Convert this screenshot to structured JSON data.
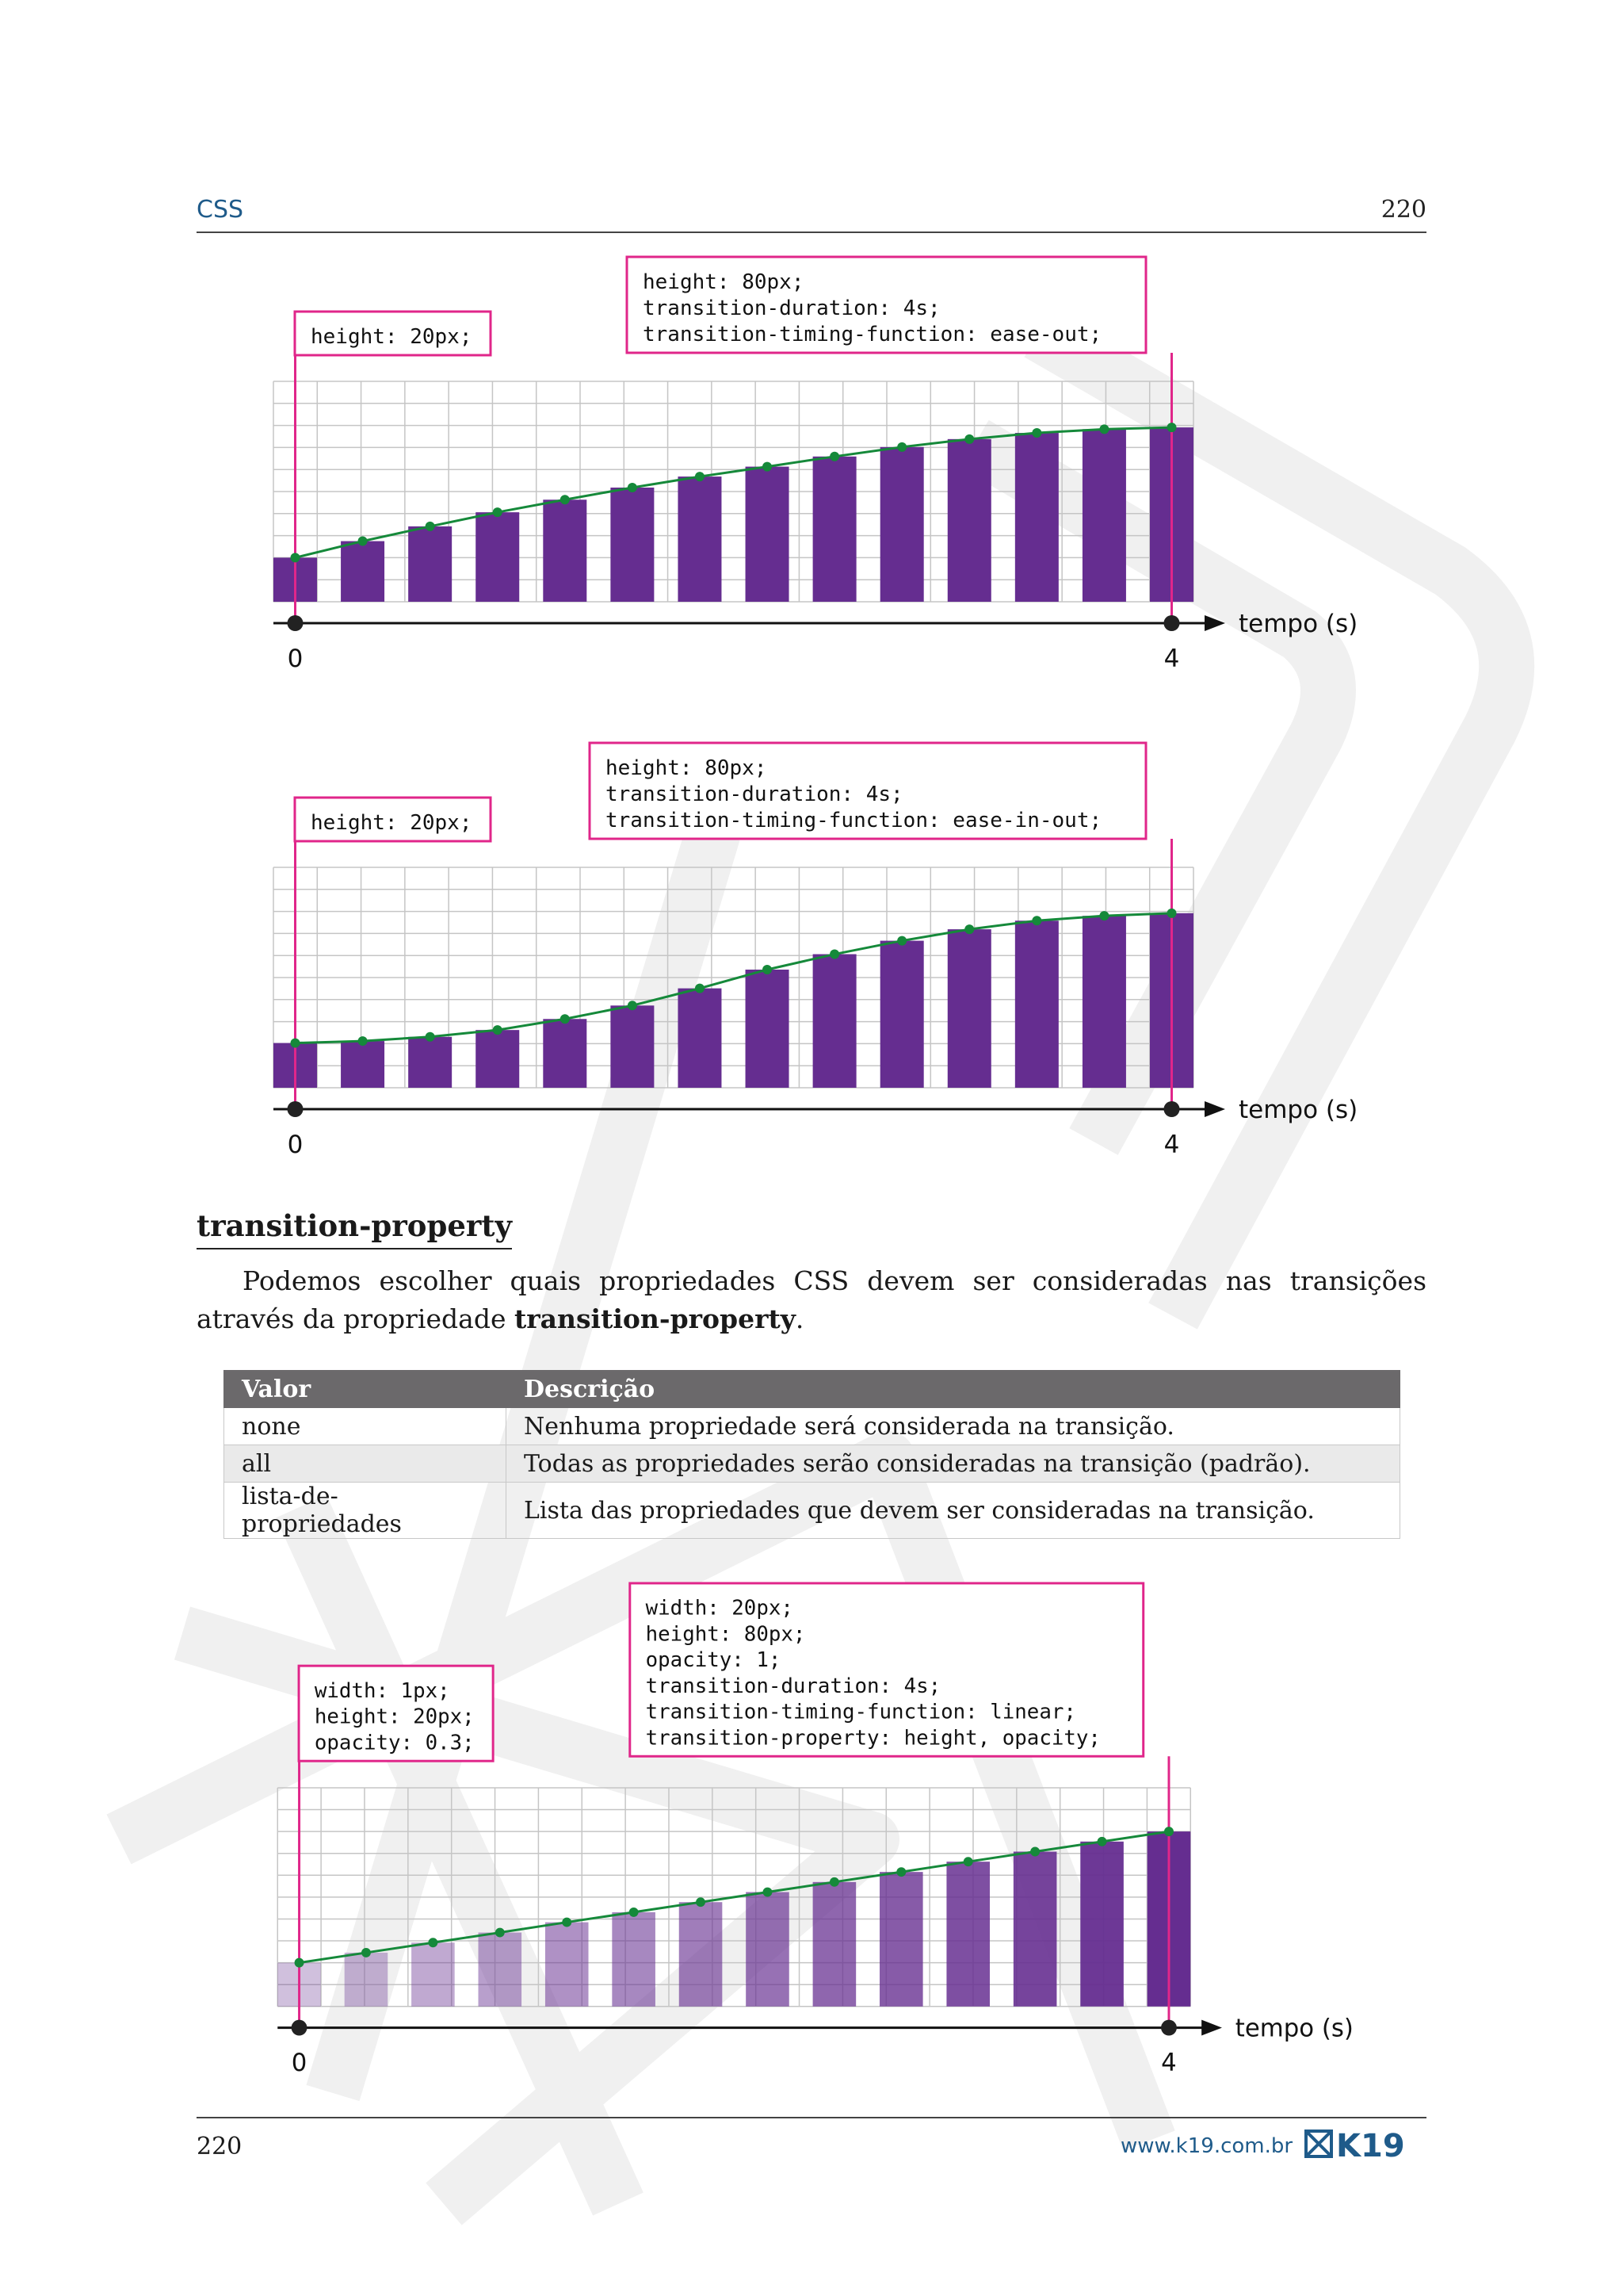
{
  "header": {
    "title": "CSS",
    "page_number": "220"
  },
  "section": {
    "heading": "transition-property",
    "paragraph_before": "Podemos escolher quais propriedades CSS devem ser consideradas nas transições através da propriedade ",
    "paragraph_bold": "transition-property",
    "paragraph_after": "."
  },
  "table": {
    "headers": [
      "Valor",
      "Descrição"
    ],
    "rows": [
      [
        "none",
        "Nenhuma propriedade será considerada na transição."
      ],
      [
        "all",
        "Todas as propriedades serão consideradas na transição (padrão)."
      ],
      [
        "lista-de-propriedades",
        "Lista das propriedades que devem ser consideradas na transição."
      ]
    ]
  },
  "footer": {
    "page_number": "220",
    "website": "www.k19.com.br",
    "logo_text": "K19"
  },
  "colors": {
    "bar": "#652d90",
    "curve": "#15893a",
    "callout_border": "#e0268a",
    "header_blue": "#1f5b8a",
    "table_header": "#6b696b"
  },
  "chart_data": [
    {
      "type": "bar",
      "title": "ease-out",
      "start_label": [
        "height: 20px;"
      ],
      "end_label": [
        "height: 80px;",
        "transition-duration: 4s;",
        "transition-timing-function: ease-out;"
      ],
      "x_tick_labels": [
        "0",
        "4"
      ],
      "x_axis_label": "tempo (s)",
      "xlim": [
        0,
        4
      ],
      "ylim": [
        0,
        100
      ],
      "values": [
        20,
        27.5,
        34.2,
        40.6,
        46.3,
        51.8,
        56.8,
        61.3,
        65.9,
        70.2,
        73.8,
        76.6,
        78.3,
        79.1
      ],
      "opacities": [
        1,
        1,
        1,
        1,
        1,
        1,
        1,
        1,
        1,
        1,
        1,
        1,
        1,
        1
      ]
    },
    {
      "type": "bar",
      "title": "ease-in-out",
      "start_label": [
        "height: 20px;"
      ],
      "end_label": [
        "height: 80px;",
        "transition-duration: 4s;",
        "transition-timing-function: ease-in-out;"
      ],
      "x_tick_labels": [
        "0",
        "4"
      ],
      "x_axis_label": "tempo (s)",
      "xlim": [
        0,
        4
      ],
      "ylim": [
        0,
        100
      ],
      "values": [
        20.3,
        21.2,
        23.1,
        26.2,
        31.2,
        37.3,
        45.1,
        53.6,
        60.6,
        66.7,
        71.9,
        75.8,
        78,
        79.2
      ],
      "opacities": [
        1,
        1,
        1,
        1,
        1,
        1,
        1,
        1,
        1,
        1,
        1,
        1,
        1,
        1
      ]
    },
    {
      "type": "bar",
      "title": "linear",
      "start_label": [
        "width: 1px;",
        "height: 20px;",
        "opacity: 0.3;"
      ],
      "end_label": [
        "width: 20px;",
        "height: 80px;",
        "opacity: 1;",
        "transition-duration: 4s;",
        "transition-timing-function: linear;",
        "transition-property: height, opacity;"
      ],
      "x_tick_labels": [
        "0",
        "4"
      ],
      "x_axis_label": "tempo (s)",
      "xlim": [
        0,
        4
      ],
      "ylim": [
        0,
        100
      ],
      "values": [
        20,
        24.6,
        29.2,
        33.8,
        38.5,
        43.1,
        47.7,
        52.3,
        56.9,
        61.5,
        66.2,
        70.8,
        75.4,
        80
      ],
      "opacities": [
        0.3,
        0.35,
        0.41,
        0.46,
        0.52,
        0.57,
        0.62,
        0.68,
        0.73,
        0.78,
        0.84,
        0.89,
        0.95,
        1
      ]
    }
  ]
}
